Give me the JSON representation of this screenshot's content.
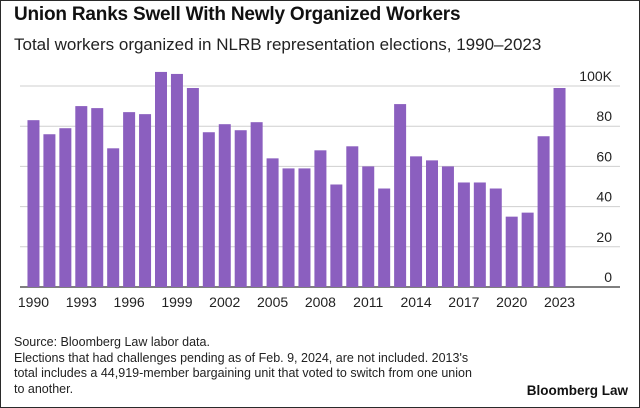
{
  "header": {
    "title": "Union Ranks Swell With Newly Organized Workers",
    "subtitle": "Total workers organized in NLRB representation elections, 1990–2023"
  },
  "footer": {
    "source": "Source: Bloomberg Law labor data.",
    "note_line1": "Elections that had challenges pending as of Feb. 9, 2024, are not included. 2013's",
    "note_line2": "total includes a 44,919-member bargaining unit that voted to switch from one union",
    "note_line3": "to another.",
    "brand": "Bloomberg Law"
  },
  "colors": {
    "bar": "#8b5fbf",
    "grid": "#cfcfcf",
    "axis": "#333333"
  },
  "chart_data": {
    "type": "bar",
    "x": [
      1990,
      1991,
      1992,
      1993,
      1994,
      1995,
      1996,
      1997,
      1998,
      1999,
      2000,
      2001,
      2002,
      2003,
      2004,
      2005,
      2006,
      2007,
      2008,
      2009,
      2010,
      2011,
      2012,
      2013,
      2014,
      2015,
      2016,
      2017,
      2018,
      2019,
      2020,
      2021,
      2022,
      2023
    ],
    "values": [
      83,
      76,
      79,
      90,
      89,
      69,
      87,
      86,
      107,
      106,
      99,
      77,
      81,
      78,
      82,
      64,
      59,
      59,
      68,
      51,
      70,
      60,
      49,
      91,
      65,
      63,
      60,
      52,
      52,
      49,
      35,
      37,
      75,
      99
    ],
    "ylim": [
      0,
      100
    ],
    "yticks": [
      {
        "value": 0,
        "label": "0"
      },
      {
        "value": 20,
        "label": "20"
      },
      {
        "value": 40,
        "label": "40"
      },
      {
        "value": 60,
        "label": "60"
      },
      {
        "value": 80,
        "label": "80"
      },
      {
        "value": 100,
        "label": "100K"
      }
    ],
    "xtick_labels": [
      "1990",
      "1993",
      "1996",
      "1999",
      "2002",
      "2005",
      "2008",
      "2011",
      "2014",
      "2017",
      "2020",
      "2023"
    ],
    "grid": true,
    "yaxis_position": "right"
  }
}
